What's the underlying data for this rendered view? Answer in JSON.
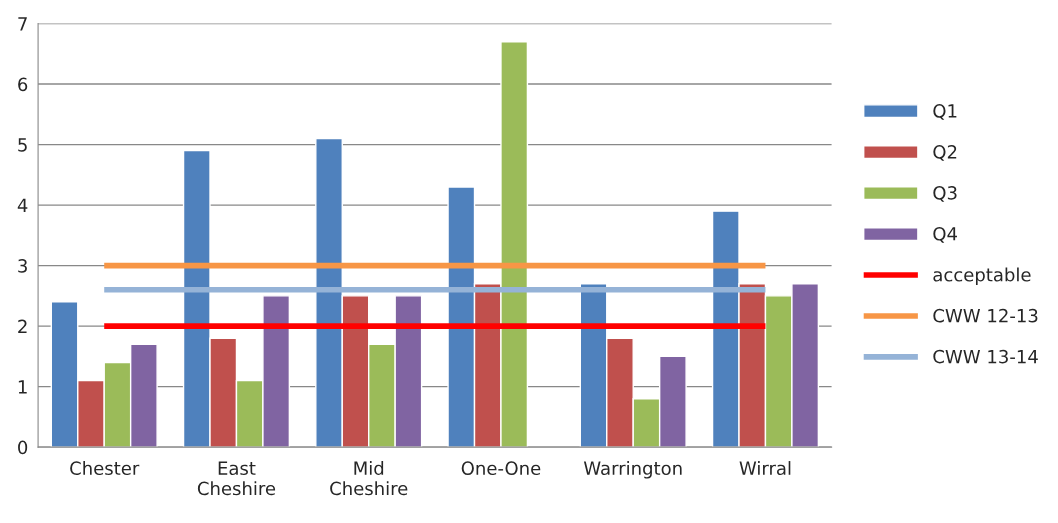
{
  "chart_data": {
    "type": "bar",
    "categories": [
      "Chester",
      "East\nCheshire",
      "Mid\nCheshire",
      "One-One",
      "Warrington",
      "Wirral"
    ],
    "series": [
      {
        "name": "Q1",
        "color": "#4f81bd",
        "values": [
          2.4,
          4.9,
          5.1,
          4.3,
          2.7,
          3.9
        ]
      },
      {
        "name": "Q2",
        "color": "#c0504d",
        "values": [
          1.1,
          1.8,
          2.5,
          2.7,
          1.8,
          2.7
        ]
      },
      {
        "name": "Q3",
        "color": "#9bbb59",
        "values": [
          1.4,
          1.1,
          1.7,
          6.7,
          0.8,
          2.5
        ]
      },
      {
        "name": "Q4",
        "color": "#8064a2",
        "values": [
          1.7,
          2.5,
          2.5,
          null,
          1.5,
          2.7
        ]
      },
      {
        "name": "acceptable",
        "type": "line",
        "color": "#ff0000",
        "values": [
          2,
          2,
          2,
          2,
          2,
          2
        ]
      },
      {
        "name": "CWW 12-13",
        "type": "line",
        "color": "#f79646",
        "values": [
          3,
          3,
          3,
          3,
          3,
          3
        ]
      },
      {
        "name": "CWW 13-14",
        "type": "line",
        "color": "#95b3d7",
        "values": [
          2.6,
          2.6,
          2.6,
          2.6,
          2.6,
          2.6
        ]
      }
    ],
    "ylim": [
      0,
      7
    ],
    "yticks": [
      0,
      1,
      2,
      3,
      4,
      5,
      6,
      7
    ],
    "grid": "y",
    "legend": "right"
  }
}
